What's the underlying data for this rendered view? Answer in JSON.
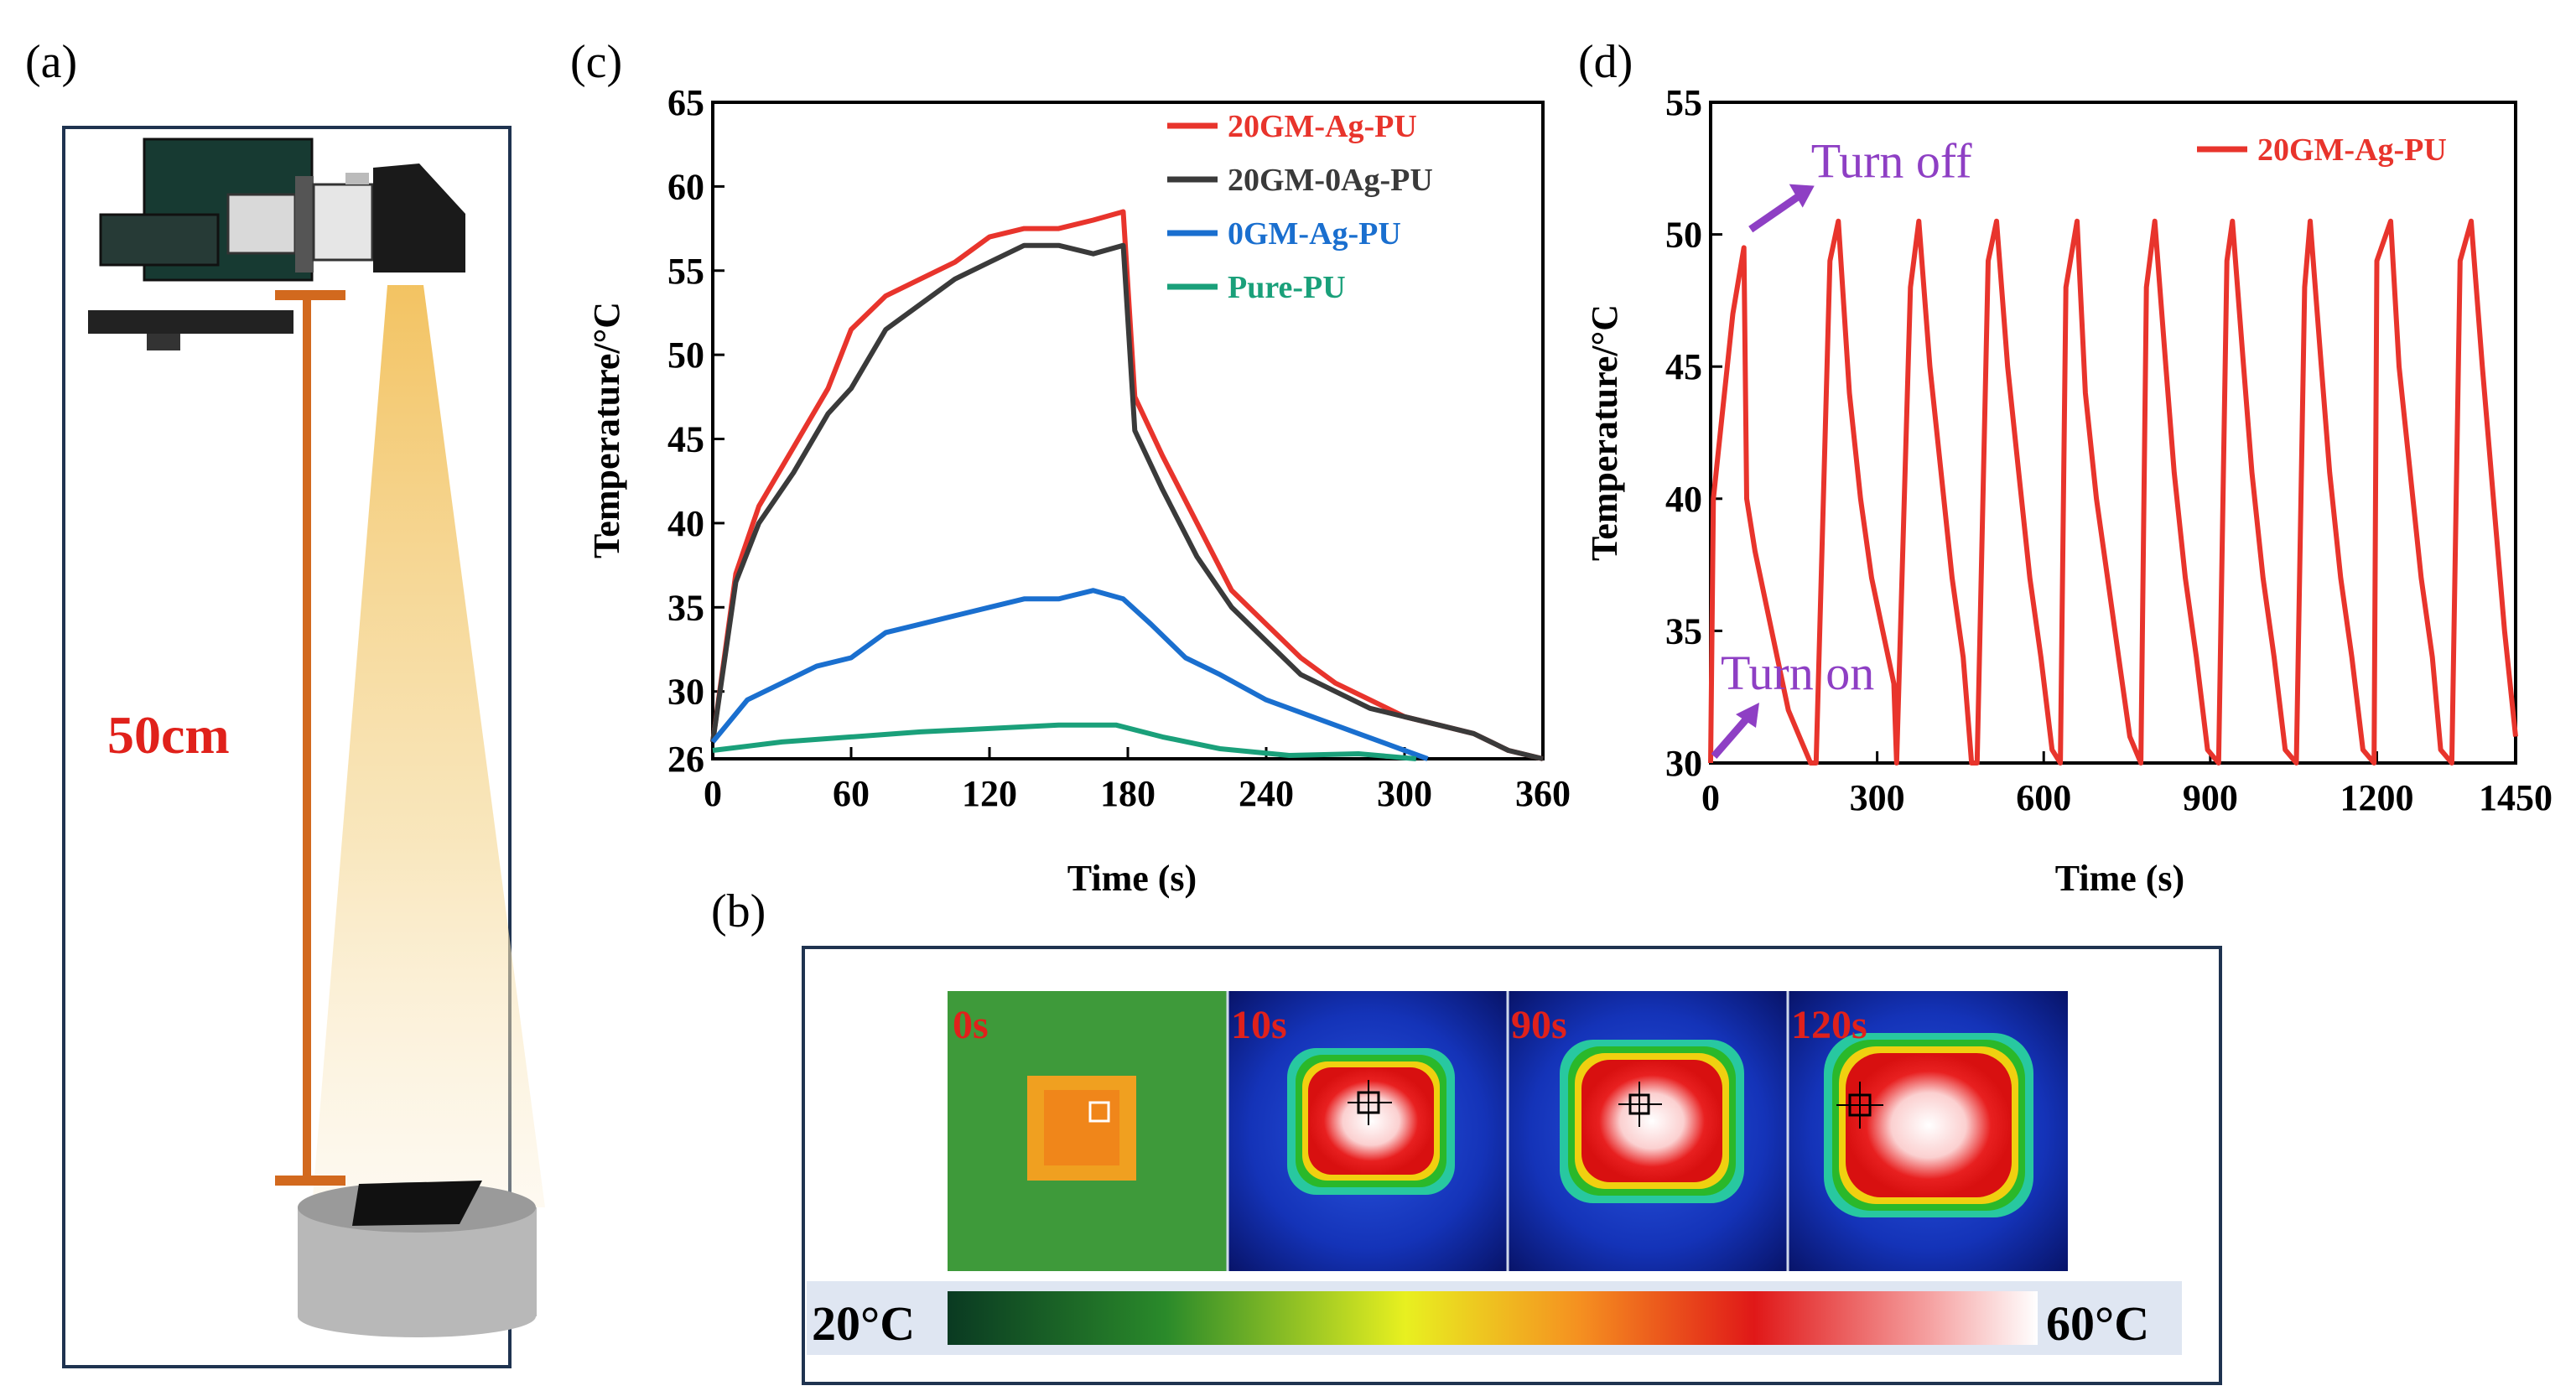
{
  "panels": {
    "a": "(a)",
    "b": "(b)",
    "c": "(c)",
    "d": "(d)"
  },
  "setup": {
    "distance_label": "50cm"
  },
  "colors": {
    "red": "#e8342c",
    "black": "#3a3a3a",
    "blue": "#1a6fcf",
    "green": "#1aa07a",
    "label_red": "#e0211b",
    "arrow_purple": "#8e3fc4",
    "frame": "#1f3350"
  },
  "thermal": {
    "frames": [
      {
        "label": "0s"
      },
      {
        "label": "10s"
      },
      {
        "label": "90s"
      },
      {
        "label": "120s"
      }
    ],
    "colorbar_min": "20°C",
    "colorbar_max": "60°C"
  },
  "chart_data": [
    {
      "id": "c",
      "type": "line",
      "xlabel": "Time (s)",
      "ylabel": "Temperature/°C",
      "xlim": [
        0,
        360
      ],
      "ylim": [
        26,
        65
      ],
      "xticks": [
        0,
        60,
        120,
        180,
        240,
        300,
        360
      ],
      "yticks": [
        26,
        30,
        35,
        40,
        45,
        50,
        55,
        60,
        65
      ],
      "series": [
        {
          "name": "20GM-Ag-PU",
          "color": "#e8342c",
          "x": [
            0,
            10,
            20,
            35,
            50,
            60,
            75,
            90,
            105,
            120,
            135,
            150,
            165,
            178,
            183,
            195,
            210,
            225,
            240,
            255,
            270,
            285,
            300,
            315,
            330,
            345,
            360
          ],
          "y": [
            27,
            37,
            41,
            44.5,
            48,
            51.5,
            53.5,
            54.5,
            55.5,
            57,
            57.5,
            57.5,
            58,
            58.5,
            47.5,
            44,
            40,
            36,
            34,
            32,
            30.5,
            29.5,
            28.5,
            28,
            27.5,
            26.5,
            26
          ]
        },
        {
          "name": "20GM-0Ag-PU",
          "color": "#3a3a3a",
          "x": [
            0,
            10,
            20,
            35,
            50,
            60,
            75,
            90,
            105,
            120,
            135,
            150,
            165,
            178,
            183,
            195,
            210,
            225,
            240,
            255,
            270,
            285,
            300,
            315,
            330,
            345,
            360
          ],
          "y": [
            27,
            36.5,
            40,
            43,
            46.5,
            48,
            51.5,
            53,
            54.5,
            55.5,
            56.5,
            56.5,
            56,
            56.5,
            45.5,
            42,
            38,
            35,
            33,
            31,
            30,
            29,
            28.5,
            28,
            27.5,
            26.5,
            26
          ]
        },
        {
          "name": "0GM-Ag-PU",
          "color": "#1a6fcf",
          "x": [
            0,
            15,
            30,
            45,
            60,
            75,
            90,
            105,
            120,
            135,
            150,
            165,
            178,
            190,
            205,
            220,
            240,
            260,
            280,
            300,
            310
          ],
          "y": [
            27,
            29.5,
            30.5,
            31.5,
            32,
            33.5,
            34,
            34.5,
            35,
            35.5,
            35.5,
            36,
            35.5,
            34,
            32,
            31,
            29.5,
            28.5,
            27.5,
            26.5,
            26
          ]
        },
        {
          "name": "Pure-PU",
          "color": "#1aa07a",
          "x": [
            0,
            30,
            60,
            90,
            120,
            150,
            175,
            195,
            220,
            250,
            280,
            305
          ],
          "y": [
            26.5,
            27,
            27.3,
            27.6,
            27.8,
            28,
            28,
            27.3,
            26.6,
            26.2,
            26.3,
            26
          ]
        }
      ]
    },
    {
      "id": "d",
      "type": "line",
      "xlabel": "Time (s)",
      "ylabel": "Temperature/°C",
      "xlim": [
        0,
        1450
      ],
      "ylim": [
        30,
        55
      ],
      "xticks": [
        0,
        300,
        600,
        900,
        1200,
        1450
      ],
      "yticks": [
        30,
        35,
        40,
        45,
        50,
        55
      ],
      "series": [
        {
          "name": "20GM-Ag-PU",
          "color": "#e8342c",
          "x": [
            0,
            5,
            20,
            40,
            60,
            65,
            80,
            100,
            120,
            140,
            160,
            180,
            190,
            215,
            230,
            250,
            270,
            290,
            310,
            330,
            335,
            360,
            375,
            395,
            415,
            435,
            455,
            470,
            480,
            500,
            515,
            535,
            555,
            575,
            595,
            615,
            630,
            640,
            660,
            675,
            695,
            715,
            735,
            755,
            775,
            785,
            800,
            820,
            835,
            855,
            875,
            895,
            915,
            930,
            940,
            960,
            975,
            995,
            1015,
            1035,
            1055,
            1070,
            1080,
            1100,
            1115,
            1135,
            1155,
            1175,
            1195,
            1200,
            1225,
            1240,
            1260,
            1280,
            1300,
            1315,
            1335,
            1350,
            1370,
            1390,
            1410,
            1430,
            1450
          ],
          "y": [
            30,
            40,
            43,
            47,
            49.5,
            40,
            38,
            36,
            34,
            32,
            31,
            30,
            30,
            49,
            50.5,
            44,
            40,
            37,
            35,
            33,
            30,
            48,
            50.5,
            45,
            41,
            37,
            34,
            30,
            30,
            49,
            50.5,
            45,
            41,
            37,
            34,
            30.5,
            30,
            48,
            50.5,
            44,
            40,
            37,
            34,
            31,
            30,
            48,
            50.5,
            45,
            41,
            37,
            34,
            30.5,
            30,
            49,
            50.5,
            45,
            41,
            37,
            34,
            30.5,
            30,
            48,
            50.5,
            45,
            41,
            37,
            34,
            30.5,
            30,
            49,
            50.5,
            45,
            41,
            37,
            34,
            30.5,
            30,
            49,
            50.5,
            45,
            40,
            35,
            31
          ]
        }
      ],
      "annotations": [
        {
          "text": "Turn off",
          "x": 60,
          "y": 50
        },
        {
          "text": "Turn on",
          "x": 0,
          "y": 30
        }
      ]
    }
  ]
}
